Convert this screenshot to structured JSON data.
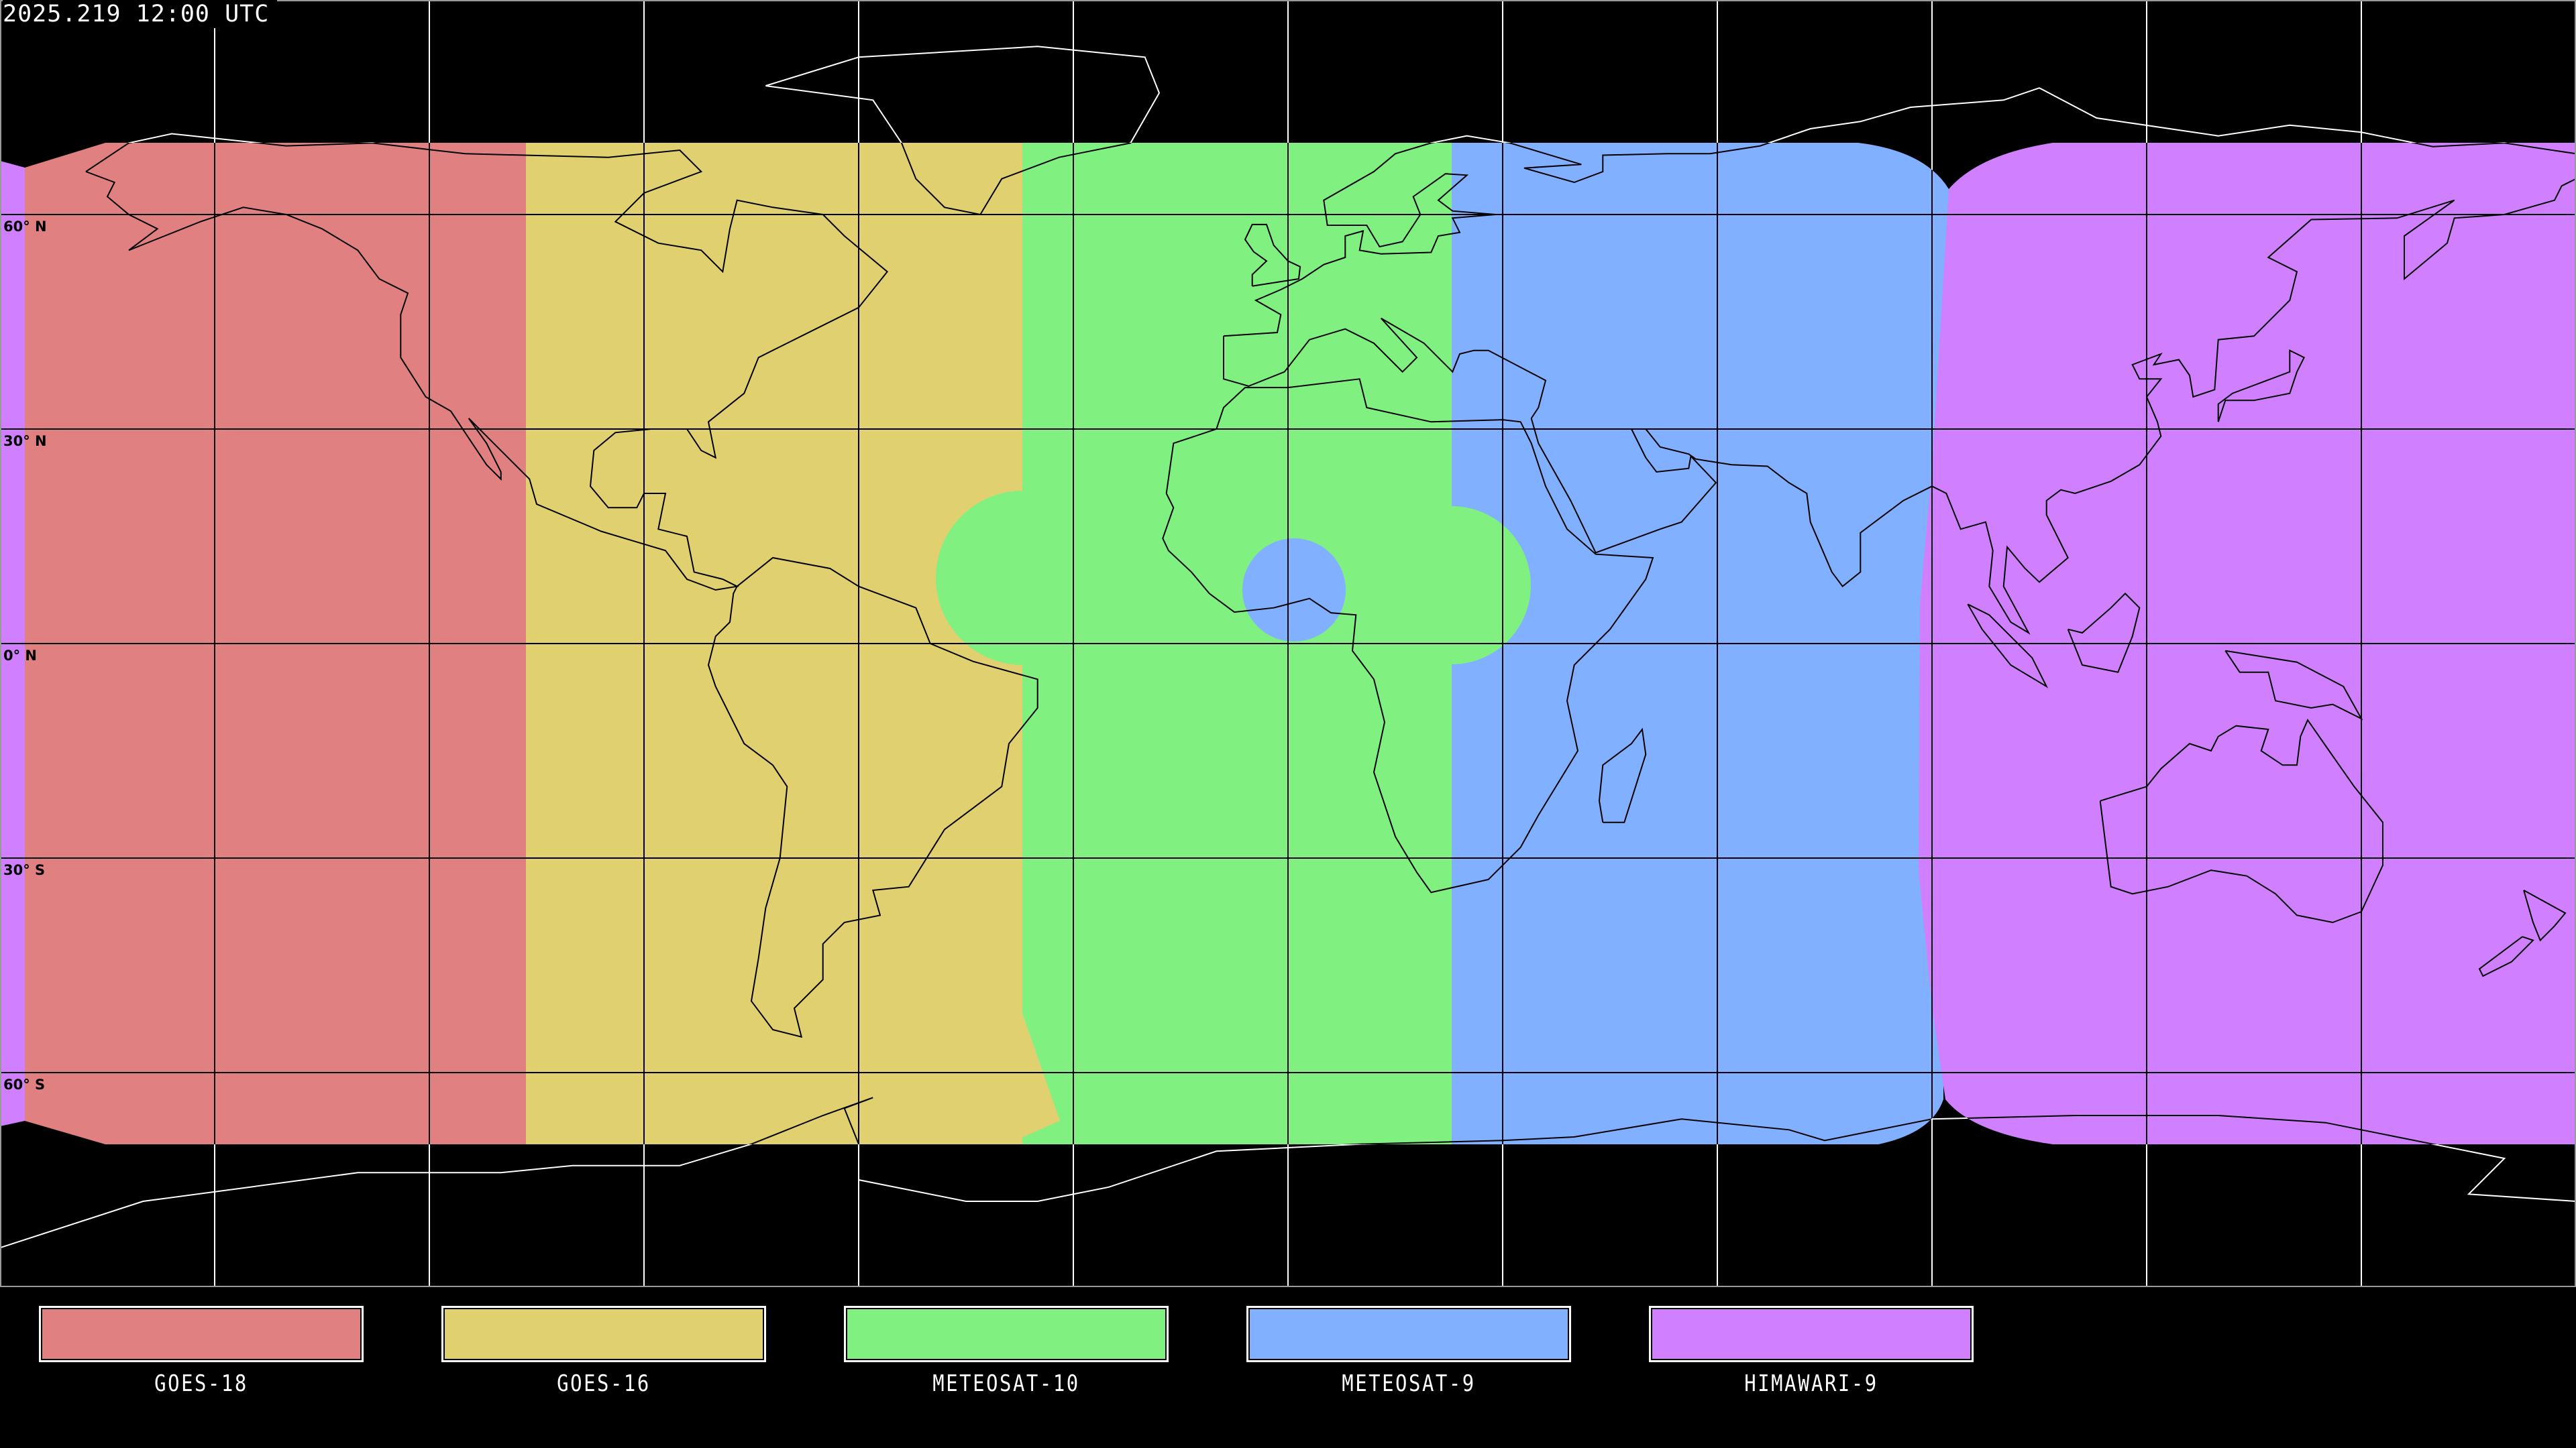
{
  "title": "2025.219 12:00 UTC",
  "lat_labels": [
    "60° N",
    "30° N",
    "0° N",
    "30° S",
    "60° S"
  ],
  "colors": {
    "background": "#000000",
    "grid_over_data": "#000000",
    "grid_over_background": "#ffffff"
  },
  "legend": [
    {
      "label": "GOES-18",
      "color": "#e08080"
    },
    {
      "label": "GOES-16",
      "color": "#e0d070"
    },
    {
      "label": "METEOSAT-10",
      "color": "#80f080"
    },
    {
      "label": "METEOSAT-9",
      "color": "#80b0ff"
    },
    {
      "label": "HIMAWARI-9",
      "color": "#d080ff"
    }
  ]
}
